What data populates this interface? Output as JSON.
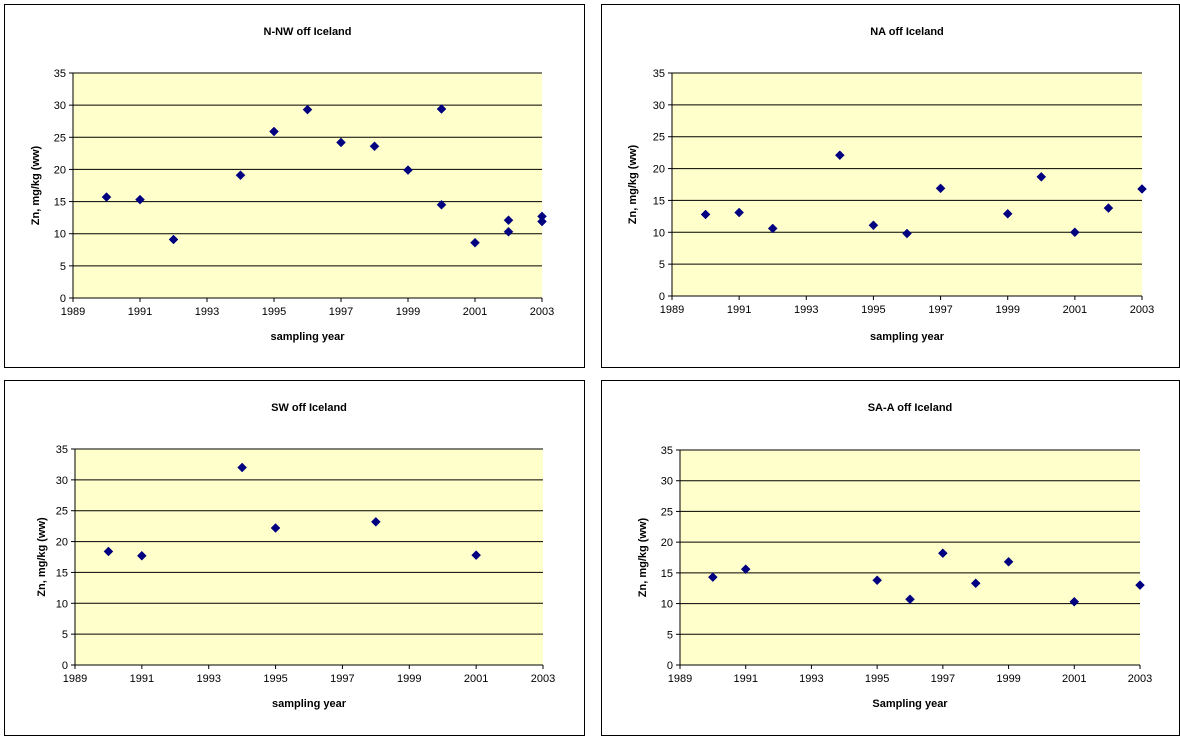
{
  "colors": {
    "plot_bg": "#ffffcc",
    "marker": "#000080",
    "grid": "#000000"
  },
  "chart_data": [
    {
      "type": "scatter",
      "title": "N-NW off Iceland",
      "xlabel": "sampling year",
      "ylabel": "Zn, mg/kg (ww)",
      "xlim": [
        1989,
        2003
      ],
      "ylim": [
        0,
        35
      ],
      "xticks": [
        "1989",
        "1991",
        "1993",
        "1995",
        "1997",
        "1999",
        "2001",
        "2003"
      ],
      "yticks": [
        "0",
        "5",
        "10",
        "15",
        "20",
        "25",
        "30",
        "35"
      ],
      "grid": "horizontal",
      "legend": "none",
      "points": [
        {
          "x": 1990,
          "y": 15.7
        },
        {
          "x": 1991,
          "y": 15.3
        },
        {
          "x": 1992,
          "y": 9.1
        },
        {
          "x": 1994,
          "y": 19.1
        },
        {
          "x": 1995,
          "y": 25.9
        },
        {
          "x": 1996,
          "y": 29.3
        },
        {
          "x": 1997,
          "y": 24.2
        },
        {
          "x": 1998,
          "y": 23.6
        },
        {
          "x": 1999,
          "y": 19.9
        },
        {
          "x": 2000,
          "y": 29.4
        },
        {
          "x": 2000,
          "y": 14.5
        },
        {
          "x": 2001,
          "y": 8.6
        },
        {
          "x": 2002,
          "y": 12.1
        },
        {
          "x": 2002,
          "y": 10.3
        },
        {
          "x": 2003,
          "y": 12.7
        },
        {
          "x": 2003,
          "y": 11.9
        }
      ]
    },
    {
      "type": "scatter",
      "title": "NA off Iceland",
      "xlabel": "sampling year",
      "ylabel": "Zn, mg/kg (ww)",
      "xlim": [
        1989,
        2003
      ],
      "ylim": [
        0,
        35
      ],
      "xticks": [
        "1989",
        "1991",
        "1993",
        "1995",
        "1997",
        "1999",
        "2001",
        "2003"
      ],
      "yticks": [
        "0",
        "5",
        "10",
        "15",
        "20",
        "25",
        "30",
        "35"
      ],
      "grid": "horizontal",
      "legend": "none",
      "points": [
        {
          "x": 1990,
          "y": 12.8
        },
        {
          "x": 1991,
          "y": 13.1
        },
        {
          "x": 1992,
          "y": 10.6
        },
        {
          "x": 1994,
          "y": 22.1
        },
        {
          "x": 1995,
          "y": 11.1
        },
        {
          "x": 1996,
          "y": 9.8
        },
        {
          "x": 1997,
          "y": 16.9
        },
        {
          "x": 1999,
          "y": 12.9
        },
        {
          "x": 2000,
          "y": 18.7
        },
        {
          "x": 2001,
          "y": 10.0
        },
        {
          "x": 2002,
          "y": 13.8
        },
        {
          "x": 2003,
          "y": 16.8
        }
      ]
    },
    {
      "type": "scatter",
      "title": "SW off Iceland",
      "xlabel": "sampling year",
      "ylabel": "Zn, mg/kg (ww)",
      "xlim": [
        1989,
        2003
      ],
      "ylim": [
        0,
        35
      ],
      "xticks": [
        "1989",
        "1991",
        "1993",
        "1995",
        "1997",
        "1999",
        "2001",
        "2003"
      ],
      "yticks": [
        "0",
        "5",
        "10",
        "15",
        "20",
        "25",
        "30",
        "35"
      ],
      "grid": "horizontal",
      "legend": "none",
      "points": [
        {
          "x": 1990,
          "y": 18.4
        },
        {
          "x": 1991,
          "y": 17.7
        },
        {
          "x": 1994,
          "y": 32.0
        },
        {
          "x": 1995,
          "y": 22.2
        },
        {
          "x": 1998,
          "y": 23.2
        },
        {
          "x": 2001,
          "y": 17.8
        }
      ]
    },
    {
      "type": "scatter",
      "title": "SA-A off Iceland",
      "xlabel": "Sampling year",
      "ylabel": "Zn, mg/kg (ww)",
      "xlim": [
        1989,
        2003
      ],
      "ylim": [
        0,
        35
      ],
      "xticks": [
        "1989",
        "1991",
        "1993",
        "1995",
        "1997",
        "1999",
        "2001",
        "2003"
      ],
      "yticks": [
        "0",
        "5",
        "10",
        "15",
        "20",
        "25",
        "30",
        "35"
      ],
      "grid": "horizontal",
      "legend": "none",
      "points": [
        {
          "x": 1990,
          "y": 14.3
        },
        {
          "x": 1991,
          "y": 15.6
        },
        {
          "x": 1995,
          "y": 13.8
        },
        {
          "x": 1996,
          "y": 10.7
        },
        {
          "x": 1997,
          "y": 18.2
        },
        {
          "x": 1998,
          "y": 13.3
        },
        {
          "x": 1999,
          "y": 16.8
        },
        {
          "x": 2001,
          "y": 10.3
        },
        {
          "x": 2003,
          "y": 13.0
        }
      ]
    }
  ]
}
